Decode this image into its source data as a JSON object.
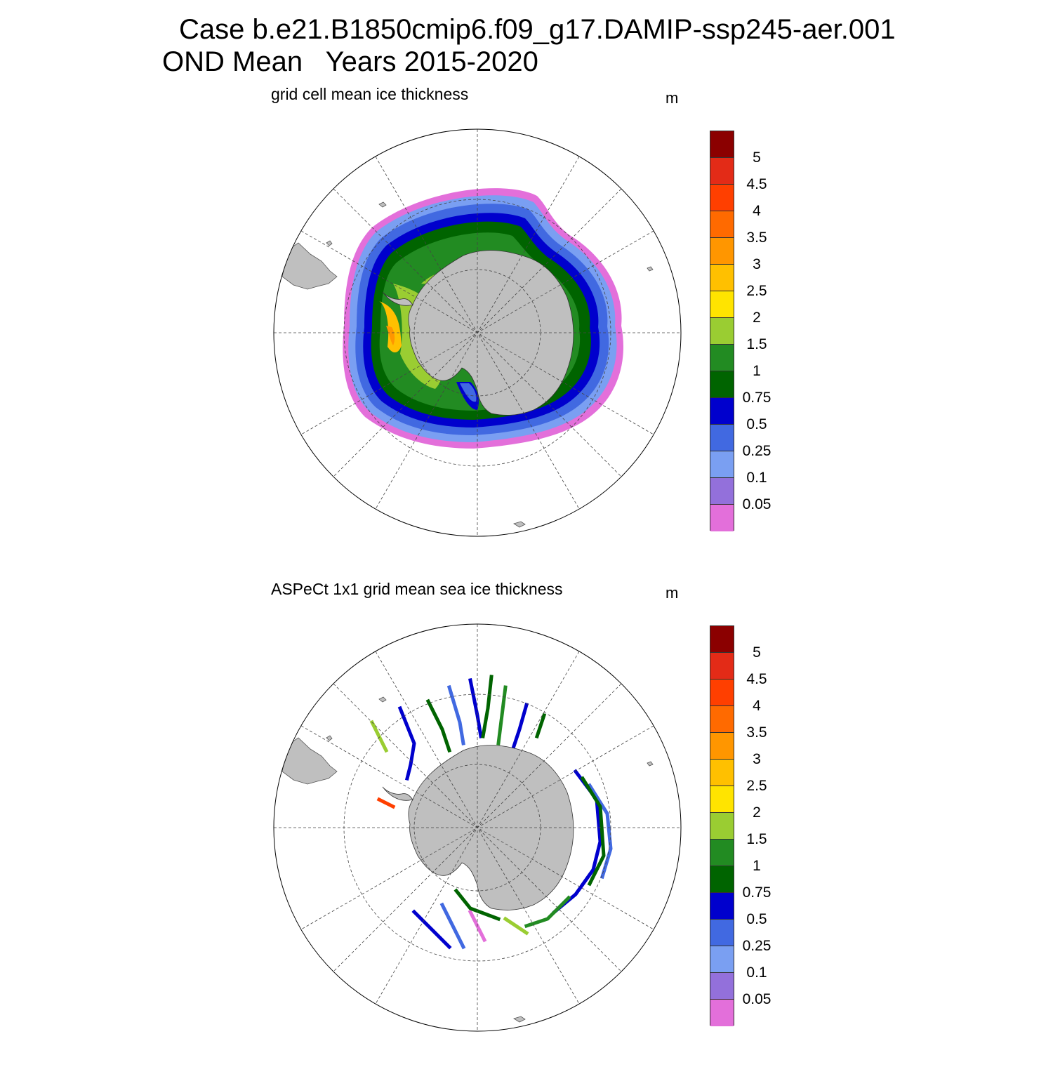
{
  "title": {
    "line1": "Case b.e21.B1850cmip6.f09_g17.DAMIP-ssp245-aer.001",
    "line2": "OND Mean   Years 2015-2020"
  },
  "panels": [
    {
      "title": "grid cell mean ice thickness",
      "unit": "m",
      "colorbar": {
        "labels": [
          "5",
          "4.5",
          "4",
          "3.5",
          "3",
          "2.5",
          "2",
          "1.5",
          "1",
          "0.75",
          "0.5",
          "0.25",
          "0.1",
          "0.05"
        ],
        "colors": [
          "#8b0000",
          "#e32b17",
          "#ff3f00",
          "#ff6a00",
          "#ff9600",
          "#ffc000",
          "#ffe400",
          "#9acd32",
          "#228b22",
          "#006400",
          "#0000cd",
          "#4169e1",
          "#7a9ff2",
          "#9370db",
          "#e36fda"
        ]
      }
    },
    {
      "title": "ASPeCt 1x1 grid mean sea ice thickness",
      "unit": "m",
      "colorbar": {
        "labels": [
          "5",
          "4.5",
          "4",
          "3.5",
          "3",
          "2.5",
          "2",
          "1.5",
          "1",
          "0.75",
          "0.5",
          "0.25",
          "0.1",
          "0.05"
        ],
        "colors": [
          "#8b0000",
          "#e32b17",
          "#ff3f00",
          "#ff6a00",
          "#ff9600",
          "#ffc000",
          "#ffe400",
          "#9acd32",
          "#228b22",
          "#006400",
          "#0000cd",
          "#4169e1",
          "#7a9ff2",
          "#9370db",
          "#e36fda"
        ]
      }
    }
  ]
}
